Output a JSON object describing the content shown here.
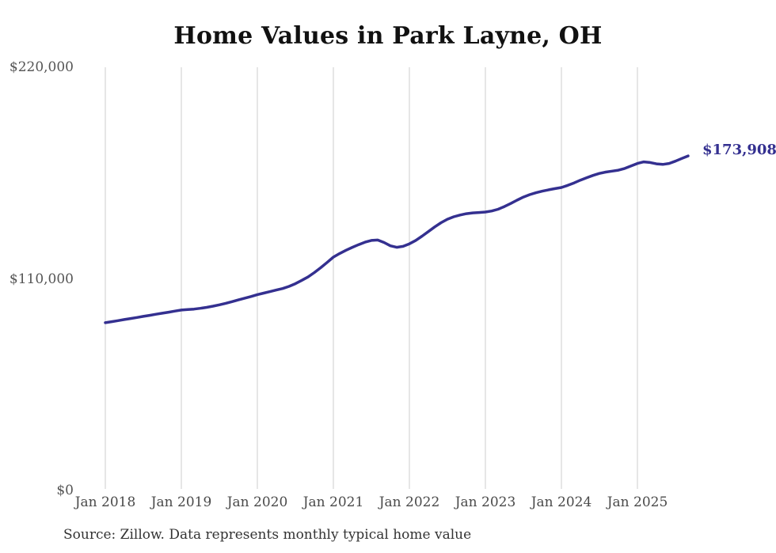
{
  "title": "Home Values in Park Layne, OH",
  "end_label": "$173,908",
  "source_note": "Source: Zillow. Data represents monthly typical home value",
  "colors": {
    "line": "#343090",
    "grid": "#cccccc",
    "axis_text": "#555555",
    "title_text": "#111111",
    "end_label_text": "#343090",
    "background": "#ffffff"
  },
  "chart_data": {
    "type": "line",
    "title": "Home Values in Park Layne, OH",
    "xlabel": "",
    "ylabel": "",
    "x_unit": "month",
    "x_start": "2018-01",
    "x_end": "2025-09",
    "x_tick_labels": [
      "Jan 2018",
      "Jan 2019",
      "Jan 2020",
      "Jan 2021",
      "Jan 2022",
      "Jan 2023",
      "Jan 2024",
      "Jan 2025"
    ],
    "y_ticks": [
      {
        "label": "$0",
        "value": 0
      },
      {
        "label": "$110,000",
        "value": 110000
      },
      {
        "label": "$220,000",
        "value": 220000
      }
    ],
    "ylim": [
      0,
      220000
    ],
    "grid": "vertical-only",
    "legend": "none",
    "annotation_last_value": "$173,908",
    "series": [
      {
        "name": "Typical home value",
        "values": [
          87200,
          87750,
          88300,
          88850,
          89400,
          89950,
          90500,
          91050,
          91600,
          92150,
          92700,
          93250,
          93800,
          94050,
          94300,
          94700,
          95200,
          95800,
          96500,
          97300,
          98150,
          99050,
          99950,
          100850,
          101800,
          102600,
          103400,
          104200,
          105000,
          106100,
          107500,
          109200,
          111000,
          113300,
          115800,
          118500,
          121300,
          123200,
          124900,
          126400,
          127800,
          129100,
          130000,
          130200,
          128900,
          127200,
          126400,
          126900,
          128200,
          130000,
          132200,
          134600,
          137000,
          139200,
          141000,
          142300,
          143200,
          143900,
          144300,
          144500,
          144750,
          145300,
          146200,
          147600,
          149200,
          150900,
          152500,
          153800,
          154800,
          155600,
          156300,
          156900,
          157500,
          158600,
          159900,
          161300,
          162600,
          163800,
          164800,
          165500,
          166000,
          166500,
          167400,
          168700,
          170000,
          170800,
          170500,
          169800,
          169500,
          170000,
          171200,
          172600,
          173908
        ]
      }
    ]
  }
}
